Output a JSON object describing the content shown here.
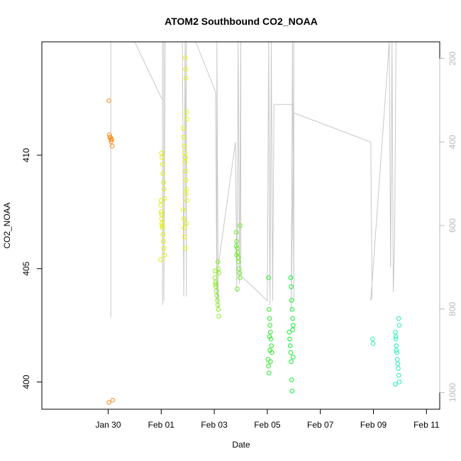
{
  "chart_data": {
    "type": "scatter",
    "title": "ATOM2 Southbound CO2_NOAA",
    "xlabel": "Date",
    "ylabel": "CO2_NOAA",
    "x_ticks": [
      "Jan 30",
      "Feb 01",
      "Feb 03",
      "Feb 05",
      "Feb 07",
      "Feb 09",
      "Feb 11"
    ],
    "y_ticks": [
      400,
      405,
      410
    ],
    "y2_ticks": [
      200,
      400,
      600,
      800,
      1000
    ],
    "x_range_days": [
      27.5,
      42.5
    ],
    "ylim": [
      398.8,
      415
    ],
    "y2lim": [
      160,
      1040
    ],
    "y2_reversed": true,
    "grid": false,
    "colors": {
      "axis": "#000000",
      "secondary_axis": "#b8b8b8",
      "altitude_trace": "#c8c8c8"
    },
    "x_date_origin": "2017-01-01",
    "clusters": [
      {
        "day": 30.1,
        "color": "#ff8c1a",
        "values": [
          412.4,
          410.9,
          410.8,
          410.8,
          410.7,
          410.6,
          410.7,
          410.4,
          399.2,
          399.1
        ]
      },
      {
        "day": 32.05,
        "color": "#dcef00",
        "values": [
          410.1,
          409.9,
          409.6,
          409.2,
          408.8,
          408.5,
          408.1,
          407.8,
          407.5,
          407.2,
          407.0,
          406.8,
          406.5,
          406.2,
          405.9,
          405.6,
          405.4,
          408.0,
          407.4,
          406.9
        ]
      },
      {
        "day": 32.9,
        "color": "#e6f500",
        "values": [
          414.3,
          413.8,
          413.4,
          411.9,
          411.6,
          411.2,
          410.8,
          410.4,
          410.1,
          409.7,
          409.3,
          408.9,
          408.5,
          408.0,
          407.6,
          407.2,
          406.8,
          406.4,
          405.9,
          409.9,
          408.3,
          407.0
        ]
      },
      {
        "day": 34.1,
        "color": "#88ee22",
        "values": [
          405.3,
          405.0,
          404.8,
          404.6,
          404.4,
          404.2,
          404.0,
          403.8,
          403.6,
          403.4,
          403.2,
          402.9,
          404.9,
          404.3
        ]
      },
      {
        "day": 34.9,
        "color": "#66ef22",
        "values": [
          406.9,
          406.6,
          406.2,
          405.9,
          405.7,
          405.5,
          405.3,
          405.0,
          404.8,
          404.6,
          406.0,
          405.6,
          404.1
        ]
      },
      {
        "day": 36.1,
        "color": "#22ee22",
        "values": [
          404.6,
          403.2,
          402.8,
          402.5,
          402.2,
          401.9,
          401.6,
          401.3,
          401.0,
          400.7,
          400.4,
          402.0,
          401.4,
          400.9
        ]
      },
      {
        "day": 36.9,
        "color": "#11ee33",
        "values": [
          404.6,
          404.2,
          403.6,
          403.2,
          402.8,
          402.5,
          402.2,
          401.9,
          401.6,
          401.3,
          400.9,
          400.1,
          399.6,
          402.3,
          401.1
        ]
      },
      {
        "day": 39.95,
        "color": "#33eeaa",
        "values": [
          401.9,
          401.7
        ]
      },
      {
        "day": 40.9,
        "color": "#22eebb",
        "values": [
          402.8,
          402.5,
          402.2,
          401.9,
          401.6,
          401.3,
          401.0,
          400.8,
          400.6,
          400.3,
          400.0,
          399.9,
          402.0,
          401.4
        ]
      }
    ],
    "altitude_trace": [
      [
        29.2,
        160
      ],
      [
        30.1,
        160
      ],
      [
        30.1,
        820
      ],
      [
        30.1,
        160
      ],
      [
        31.0,
        160
      ],
      [
        32.05,
        300
      ],
      [
        32.05,
        790
      ],
      [
        32.05,
        160
      ],
      [
        32.1,
        160
      ],
      [
        32.1,
        780
      ],
      [
        32.15,
        160
      ],
      [
        32.8,
        160
      ],
      [
        32.85,
        770
      ],
      [
        32.9,
        160
      ],
      [
        32.95,
        770
      ],
      [
        32.95,
        160
      ],
      [
        33.3,
        160
      ],
      [
        34.05,
        280
      ],
      [
        34.1,
        780
      ],
      [
        34.1,
        160
      ],
      [
        34.15,
        800
      ],
      [
        34.1,
        720
      ],
      [
        34.8,
        400
      ],
      [
        34.85,
        760
      ],
      [
        34.9,
        160
      ],
      [
        34.95,
        740
      ],
      [
        35.0,
        160
      ],
      [
        35.0,
        720
      ],
      [
        35.0,
        720
      ],
      [
        36.0,
        780
      ],
      [
        36.05,
        160
      ],
      [
        36.1,
        790
      ],
      [
        36.15,
        160
      ],
      [
        36.2,
        780
      ],
      [
        36.25,
        310
      ],
      [
        37.0,
        310
      ],
      [
        36.9,
        800
      ],
      [
        36.95,
        160
      ],
      [
        37.0,
        780
      ],
      [
        37.0,
        160
      ],
      [
        37.0,
        330
      ],
      [
        39.9,
        400
      ],
      [
        39.95,
        770
      ],
      [
        39.9,
        780
      ],
      [
        40.6,
        160
      ],
      [
        40.65,
        700
      ],
      [
        40.7,
        160
      ],
      [
        40.75,
        760
      ],
      [
        40.8,
        640
      ],
      [
        40.85,
        160
      ]
    ]
  }
}
